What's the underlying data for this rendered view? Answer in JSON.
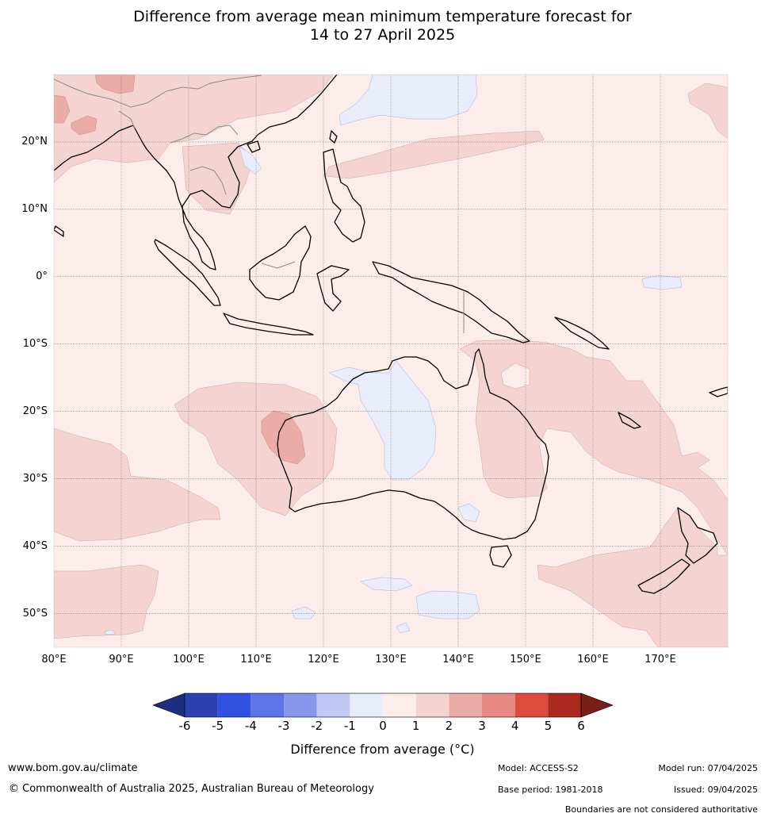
{
  "title": {
    "line1": "Difference from average mean minimum temperature forecast for",
    "line2": "14 to 27 April 2025"
  },
  "map": {
    "region": "Indian Ocean / Maritime Continent / Australia / Western Pacific",
    "lat_labels": [
      "20°N",
      "10°N",
      "0°",
      "10°S",
      "20°S",
      "30°S",
      "40°S",
      "50°S"
    ],
    "lon_labels": [
      "80°E",
      "90°E",
      "100°E",
      "110°E",
      "120°E",
      "130°E",
      "140°E",
      "150°E",
      "160°E",
      "170°E"
    ],
    "lat_range": [
      -55,
      30
    ],
    "lon_range": [
      80,
      180
    ],
    "background_category": "0 to 1",
    "gridlines": true
  },
  "colorbar": {
    "ticks": [
      "-6",
      "-5",
      "-4",
      "-3",
      "-2",
      "-1",
      "0",
      "1",
      "2",
      "3",
      "4",
      "5",
      "6"
    ],
    "colors": {
      "below_-6": "#1e2e7e",
      "-6_-5": "#2d40b2",
      "-5_-4": "#3152e0",
      "-4_-3": "#5d75e6",
      "-3_-2": "#8797ec",
      "-2_-1": "#c0c8f5",
      "-1_0": "#e8ecfb",
      "0_1": "#fcecea",
      "1_2": "#f5d3d0",
      "2_3": "#ebaca7",
      "3_4": "#e68a83",
      "4_5": "#db4b3e",
      "5_6": "#aa2a20",
      "above_6": "#7b1e17"
    },
    "label": "Difference from average (°C)"
  },
  "footer": {
    "website": "www.bom.gov.au/climate",
    "copyright": "© Commonwealth of Australia 2025, Australian Bureau of Meteorology",
    "model": "Model: ACCESS-S2",
    "base_period": "Base period: 1981-2018",
    "model_run": "Model run: 07/04/2025",
    "issued": "Issued: 09/04/2025",
    "disclaimer": "Boundaries are not considered authoritative"
  }
}
